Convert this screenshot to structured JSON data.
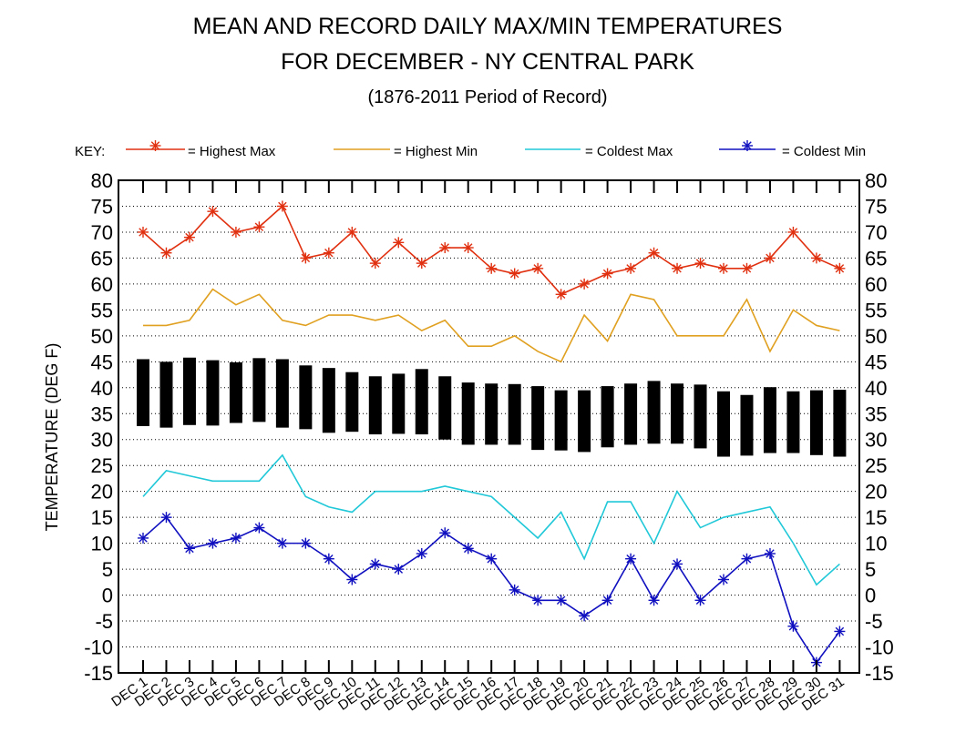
{
  "chart_data": {
    "type": "line",
    "title": "MEAN AND RECORD DAILY MAX/MIN TEMPERATURES",
    "title_line2": "FOR DECEMBER - NY CENTRAL PARK",
    "subtitle": "(1876-2011 Period of Record)",
    "ylabel": "TEMPERATURE (DEG F)",
    "key_label": "KEY:",
    "ylim": [
      -15,
      80
    ],
    "ytick_step": 5,
    "grid": "horizontal dotted",
    "legend_position": "top",
    "categories": [
      "DEC 1",
      "DEC 2",
      "DEC 3",
      "DEC 4",
      "DEC 5",
      "DEC 6",
      "DEC 7",
      "DEC 8",
      "DEC 9",
      "DEC 10",
      "DEC 11",
      "DEC 12",
      "DEC 13",
      "DEC 14",
      "DEC 15",
      "DEC 16",
      "DEC 17",
      "DEC 18",
      "DEC 19",
      "DEC 20",
      "DEC 21",
      "DEC 22",
      "DEC 23",
      "DEC 24",
      "DEC 25",
      "DEC 26",
      "DEC 27",
      "DEC 28",
      "DEC 29",
      "DEC 30",
      "DEC 31"
    ],
    "series": [
      {
        "name": "= Highest Max",
        "color": "#e03010",
        "marker": "asterisk",
        "values": [
          70,
          66,
          69,
          74,
          70,
          71,
          75,
          65,
          66,
          70,
          64,
          68,
          64,
          67,
          67,
          63,
          62,
          63,
          58,
          60,
          62,
          63,
          66,
          63,
          64,
          63,
          63,
          65,
          70,
          65,
          63
        ]
      },
      {
        "name": "= Highest Min",
        "color": "#e0a020",
        "marker": "none",
        "values": [
          52,
          52,
          53,
          59,
          56,
          58,
          53,
          52,
          54,
          54,
          53,
          54,
          51,
          53,
          48,
          48,
          50,
          47,
          45,
          54,
          49,
          58,
          57,
          50,
          50,
          50,
          57,
          47,
          55,
          52,
          51
        ]
      },
      {
        "name": "= Coldest Max",
        "color": "#20c8d8",
        "marker": "none",
        "values": [
          19,
          24,
          23,
          22,
          22,
          22,
          27,
          19,
          17,
          16,
          20,
          20,
          20,
          21,
          20,
          19,
          15,
          11,
          16,
          7,
          18,
          18,
          10,
          20,
          13,
          15,
          16,
          17,
          10,
          2,
          6
        ]
      },
      {
        "name": "= Coldest Min",
        "color": "#1010c0",
        "marker": "asterisk",
        "values": [
          11,
          15,
          9,
          10,
          11,
          13,
          10,
          10,
          7,
          3,
          6,
          5,
          8,
          12,
          9,
          7,
          1,
          -1,
          -1,
          -4,
          -1,
          7,
          -1,
          6,
          -1,
          3,
          7,
          8,
          -6,
          -13,
          -7
        ]
      }
    ],
    "mean_bars": {
      "color": "#000000",
      "normal_high": [
        45.5,
        45,
        45.8,
        45.3,
        44.9,
        45.7,
        45.5,
        44.3,
        43.8,
        43,
        42.2,
        42.7,
        43.6,
        42.2,
        41,
        40.8,
        40.7,
        40.3,
        39.5,
        39.5,
        40.3,
        40.8,
        41.3,
        40.8,
        40.6,
        39.3,
        38.6,
        40.1,
        39.3,
        39.5,
        39.6
      ],
      "normal_low": [
        32.6,
        32.3,
        32.8,
        32.7,
        33.2,
        33.4,
        32.3,
        32.0,
        31.3,
        31.5,
        31.0,
        31.1,
        31.0,
        30.0,
        29.0,
        29.0,
        29.0,
        28.0,
        27.9,
        27.6,
        28.5,
        29.0,
        29.2,
        29.2,
        28.3,
        26.7,
        26.9,
        27.4,
        27.4,
        27.0,
        26.7
      ]
    }
  }
}
